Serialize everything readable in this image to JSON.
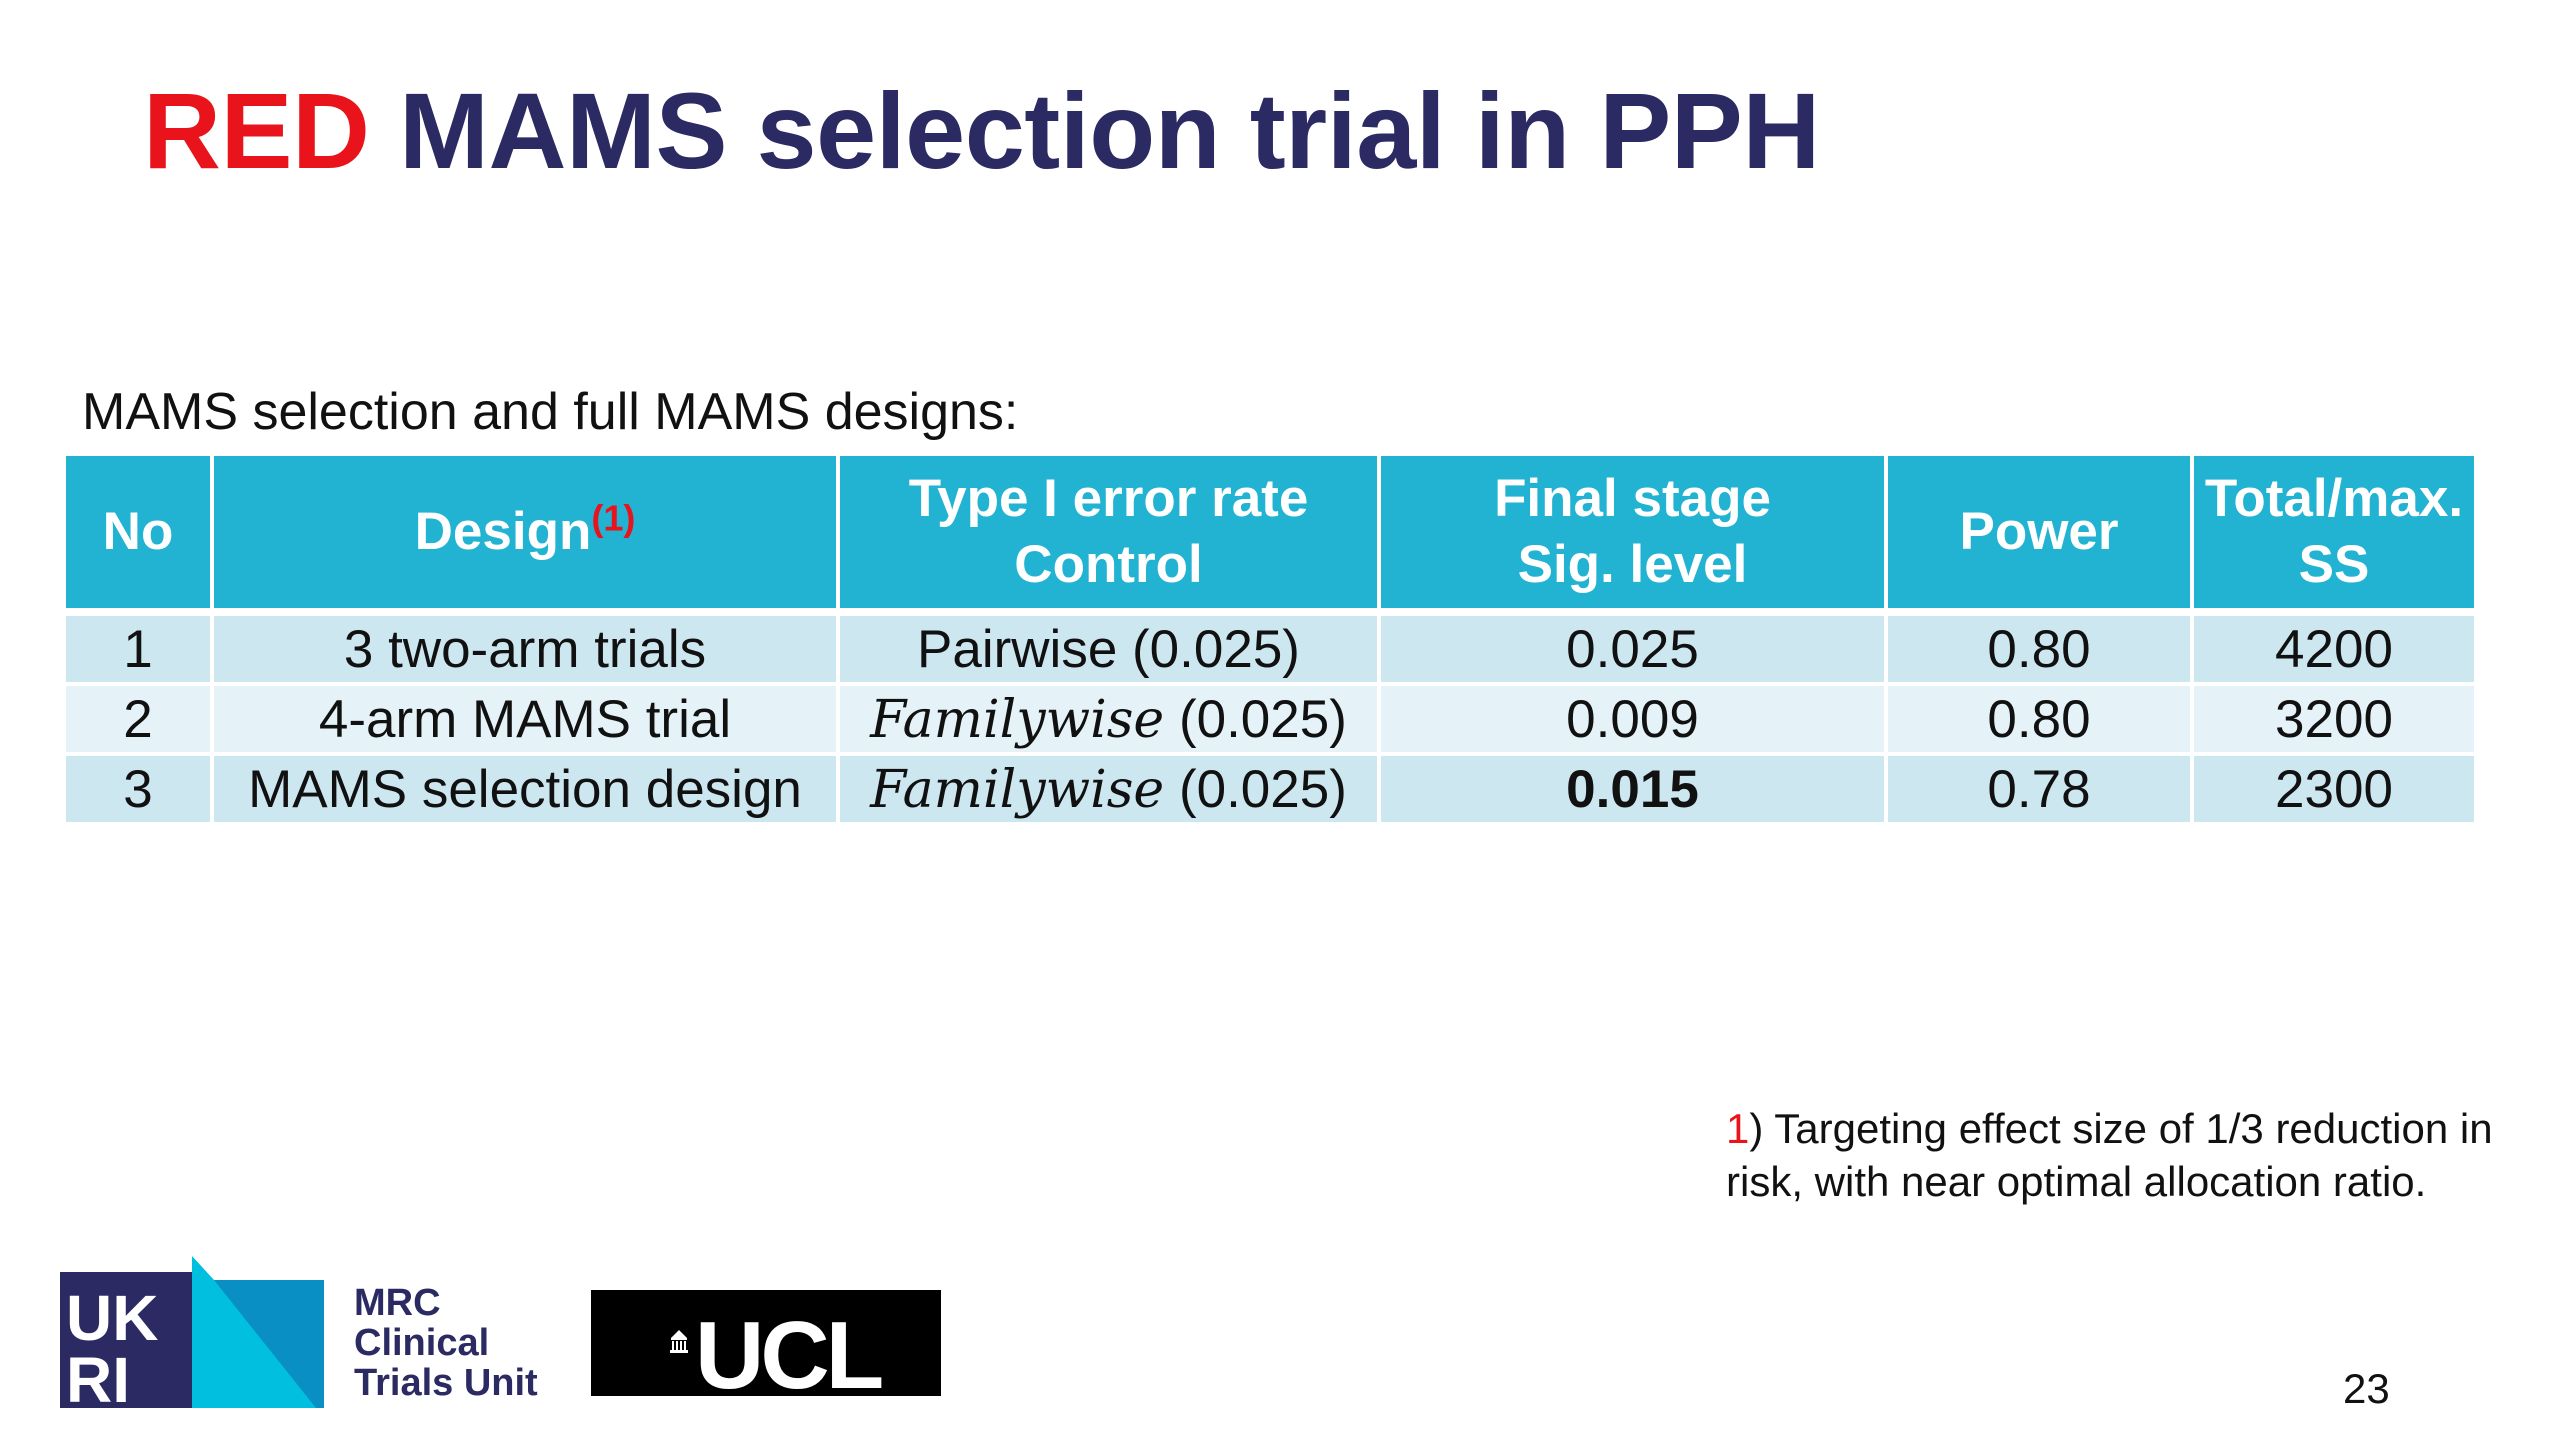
{
  "slide": {
    "title_red": "RED",
    "title_rest": "MAMS selection trial in PPH",
    "subtitle": "MAMS selection and full MAMS designs:",
    "page_number": "23"
  },
  "table": {
    "headers": {
      "no": "No",
      "design": "Design",
      "design_sup": "(1)",
      "error_line1": "Type I error rate",
      "error_line2": "Control",
      "final_line1": "Final stage",
      "final_line2": "Sig. level",
      "power": "Power",
      "ss_line1": "Total/max.",
      "ss_line2": "SS"
    },
    "rows": [
      {
        "no": "1",
        "design": "3 two-arm trials",
        "error_type": "Pairwise",
        "error_value": "(0.025)",
        "sig_level": "0.025",
        "power": "0.80",
        "ss": "4200"
      },
      {
        "no": "2",
        "design": "4-arm MAMS trial",
        "error_type": "Familywise",
        "error_value": "(0.025)",
        "sig_level": "0.009",
        "power": "0.80",
        "ss": "3200"
      },
      {
        "no": "3",
        "design": "MAMS selection design",
        "error_type": "Familywise",
        "error_value": "(0.025)",
        "sig_level": "0.015",
        "power": "0.78",
        "ss": "2300"
      }
    ]
  },
  "footnote": {
    "marker": "1",
    "text": ") Targeting effect size of 1/3 reduction in risk, with near optimal allocation ratio."
  },
  "logos": {
    "ukri_letters": "UKRI",
    "mrc_line1": "MRC",
    "mrc_line2": "Clinical",
    "mrc_line3": "Trials Unit",
    "ucl_text": "UCL"
  },
  "colors": {
    "title_navy": "#2b2a62",
    "title_red": "#e8131b",
    "header_cyan": "#22b2d2",
    "row_light": "#e5f3f8",
    "row_mid": "#cde7f1"
  }
}
